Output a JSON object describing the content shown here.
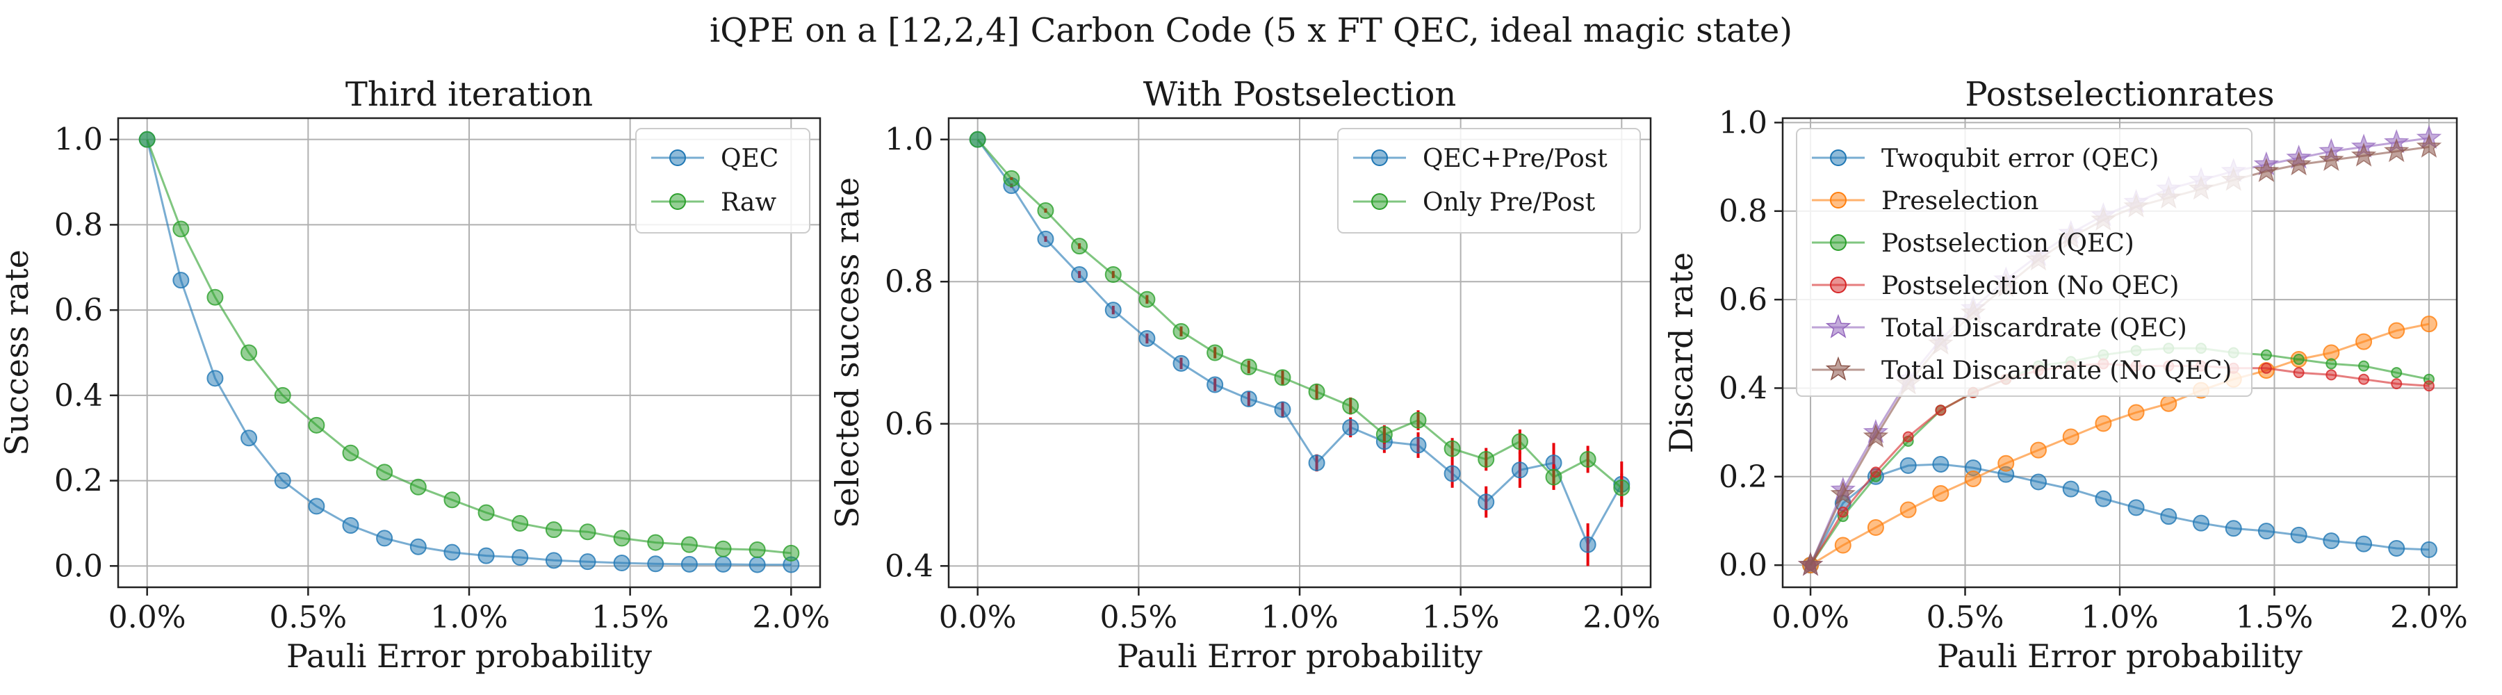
{
  "suptitle": "iQPE on a [12,2,4] Carbon Code (5 x FT QEC, ideal magic state)",
  "colors": {
    "blue": "#1f77b4",
    "orange": "#ff7f0e",
    "green": "#2ca02c",
    "red": "#d62728",
    "purple": "#9467bd",
    "brown": "#8c564b",
    "errorbar": "#e8000b"
  },
  "chart_data": [
    {
      "type": "line",
      "title": "Third iteration",
      "xlabel": "Pauli Error probability",
      "ylabel": "Success rate",
      "xlim": [
        -0.09,
        2.09
      ],
      "ylim": [
        -0.05,
        1.05
      ],
      "xticks": [
        0.0,
        0.5,
        1.0,
        1.5,
        2.0
      ],
      "xtick_labels": [
        "0.0%",
        "0.5%",
        "1.0%",
        "1.5%",
        "2.0%"
      ],
      "yticks": [
        0.0,
        0.2,
        0.4,
        0.6,
        0.8,
        1.0
      ],
      "ytick_labels": [
        "0.0",
        "0.2",
        "0.4",
        "0.6",
        "0.8",
        "1.0"
      ],
      "grid": true,
      "legend_position": "top-right",
      "x": [
        0.0,
        0.105,
        0.211,
        0.316,
        0.421,
        0.526,
        0.632,
        0.737,
        0.842,
        0.947,
        1.053,
        1.158,
        1.263,
        1.368,
        1.474,
        1.579,
        1.684,
        1.789,
        1.895,
        2.0
      ],
      "series": [
        {
          "name": "QEC",
          "color": "blue",
          "marker": "o",
          "values": [
            1.0,
            0.67,
            0.44,
            0.3,
            0.2,
            0.14,
            0.095,
            0.065,
            0.045,
            0.032,
            0.024,
            0.02,
            0.013,
            0.01,
            0.007,
            0.005,
            0.004,
            0.004,
            0.003,
            0.003
          ]
        },
        {
          "name": "Raw",
          "color": "green",
          "marker": "o",
          "values": [
            1.0,
            0.79,
            0.63,
            0.5,
            0.4,
            0.33,
            0.265,
            0.22,
            0.185,
            0.155,
            0.125,
            0.1,
            0.085,
            0.08,
            0.065,
            0.055,
            0.05,
            0.04,
            0.038,
            0.03
          ]
        }
      ]
    },
    {
      "type": "line",
      "title": "With Postselection",
      "xlabel": "Pauli Error probability",
      "ylabel": "Selected success rate",
      "xlim": [
        -0.09,
        2.09
      ],
      "ylim": [
        0.37,
        1.03
      ],
      "xticks": [
        0.0,
        0.5,
        1.0,
        1.5,
        2.0
      ],
      "xtick_labels": [
        "0.0%",
        "0.5%",
        "1.0%",
        "1.5%",
        "2.0%"
      ],
      "yticks": [
        0.4,
        0.6,
        0.8,
        1.0
      ],
      "ytick_labels": [
        "0.4",
        "0.6",
        "0.8",
        "1.0"
      ],
      "grid": true,
      "legend_position": "top-right",
      "x": [
        0.0,
        0.105,
        0.211,
        0.316,
        0.421,
        0.526,
        0.632,
        0.737,
        0.842,
        0.947,
        1.053,
        1.158,
        1.263,
        1.368,
        1.474,
        1.579,
        1.684,
        1.789,
        1.895,
        2.0
      ],
      "series": [
        {
          "name": "QEC+Pre/Post",
          "color": "blue",
          "marker": "o",
          "values": [
            1.0,
            0.935,
            0.86,
            0.81,
            0.76,
            0.72,
            0.685,
            0.655,
            0.635,
            0.62,
            0.545,
            0.595,
            0.575,
            0.57,
            0.53,
            0.49,
            0.535,
            0.545,
            0.43,
            0.515
          ],
          "errors": [
            0,
            0.003,
            0.004,
            0.005,
            0.006,
            0.007,
            0.008,
            0.009,
            0.01,
            0.011,
            0.012,
            0.014,
            0.016,
            0.018,
            0.02,
            0.022,
            0.025,
            0.028,
            0.03,
            0.032
          ]
        },
        {
          "name": "Only Pre/Post",
          "color": "green",
          "marker": "o",
          "values": [
            1.0,
            0.945,
            0.9,
            0.85,
            0.81,
            0.775,
            0.73,
            0.7,
            0.68,
            0.665,
            0.645,
            0.625,
            0.585,
            0.605,
            0.565,
            0.55,
            0.575,
            0.525,
            0.55,
            0.51
          ],
          "errors": [
            0,
            0.002,
            0.003,
            0.004,
            0.005,
            0.006,
            0.007,
            0.008,
            0.009,
            0.01,
            0.011,
            0.012,
            0.013,
            0.014,
            0.015,
            0.016,
            0.017,
            0.018,
            0.019,
            0.02
          ]
        }
      ]
    },
    {
      "type": "line",
      "title": "Postselectionrates",
      "xlabel": "Pauli Error probability",
      "ylabel": "Discard rate",
      "xlim": [
        -0.09,
        2.09
      ],
      "ylim": [
        -0.05,
        1.01
      ],
      "xticks": [
        0.0,
        0.5,
        1.0,
        1.5,
        2.0
      ],
      "xtick_labels": [
        "0.0%",
        "0.5%",
        "1.0%",
        "1.5%",
        "2.0%"
      ],
      "yticks": [
        0.0,
        0.2,
        0.4,
        0.6,
        0.8,
        1.0
      ],
      "ytick_labels": [
        "0.0",
        "0.2",
        "0.4",
        "0.6",
        "0.8",
        "1.0"
      ],
      "grid": true,
      "legend_position": "top-left",
      "x": [
        0.0,
        0.105,
        0.211,
        0.316,
        0.421,
        0.526,
        0.632,
        0.737,
        0.842,
        0.947,
        1.053,
        1.158,
        1.263,
        1.368,
        1.474,
        1.579,
        1.684,
        1.789,
        1.895,
        2.0
      ],
      "series": [
        {
          "name": "Twoqubit error (QEC)",
          "color": "blue",
          "marker": "o",
          "values": [
            0.0,
            0.14,
            0.2,
            0.225,
            0.228,
            0.22,
            0.205,
            0.188,
            0.172,
            0.15,
            0.13,
            0.11,
            0.095,
            0.083,
            0.077,
            0.068,
            0.055,
            0.048,
            0.038,
            0.035
          ]
        },
        {
          "name": "Preselection",
          "color": "orange",
          "marker": "o",
          "values": [
            0.0,
            0.045,
            0.085,
            0.125,
            0.162,
            0.195,
            0.23,
            0.26,
            0.29,
            0.32,
            0.345,
            0.365,
            0.395,
            0.42,
            0.44,
            0.465,
            0.48,
            0.505,
            0.53,
            0.545
          ]
        },
        {
          "name": "Postselection (QEC)",
          "color": "green",
          "marker": "o",
          "values": [
            0.0,
            0.11,
            0.2,
            0.28,
            0.35,
            0.39,
            0.42,
            0.45,
            0.46,
            0.475,
            0.485,
            0.49,
            0.49,
            0.48,
            0.475,
            0.465,
            0.455,
            0.45,
            0.435,
            0.42
          ]
        },
        {
          "name": "Postselection (No QEC)",
          "color": "red",
          "marker": "o",
          "values": [
            0.0,
            0.12,
            0.21,
            0.29,
            0.35,
            0.39,
            0.42,
            0.44,
            0.45,
            0.455,
            0.45,
            0.45,
            0.45,
            0.445,
            0.445,
            0.435,
            0.43,
            0.42,
            0.41,
            0.405
          ]
        },
        {
          "name": "Total Discardrate (QEC)",
          "color": "purple",
          "marker": "*",
          "values": [
            0.0,
            0.17,
            0.3,
            0.42,
            0.51,
            0.58,
            0.645,
            0.7,
            0.75,
            0.79,
            0.82,
            0.85,
            0.87,
            0.89,
            0.905,
            0.92,
            0.935,
            0.945,
            0.955,
            0.965
          ]
        },
        {
          "name": "Total Discardrate (No QEC)",
          "color": "brown",
          "marker": "*",
          "values": [
            0.0,
            0.16,
            0.29,
            0.41,
            0.5,
            0.57,
            0.63,
            0.69,
            0.74,
            0.78,
            0.81,
            0.83,
            0.85,
            0.87,
            0.89,
            0.905,
            0.915,
            0.925,
            0.935,
            0.945
          ]
        }
      ]
    }
  ]
}
